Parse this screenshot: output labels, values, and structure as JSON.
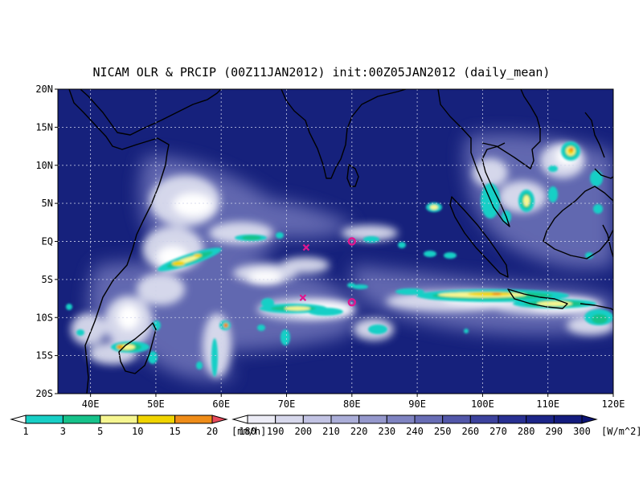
{
  "title": "NICAM OLR & PRCIP (00Z11JAN2012) init:00Z05JAN2012 (daily_mean)",
  "map": {
    "lat_ticks": [
      "20N",
      "15N",
      "10N",
      "5N",
      "EQ",
      "5S",
      "10S",
      "15S",
      "20S"
    ],
    "lon_ticks": [
      "40E",
      "50E",
      "60E",
      "70E",
      "80E",
      "90E",
      "100E",
      "110E",
      "120E"
    ],
    "lon_range": [
      35,
      120
    ],
    "lat_range": [
      -20,
      20
    ],
    "grid": true,
    "background_color": "#16217c",
    "coast_color": "#000000",
    "markers": [
      {
        "symbol": "x",
        "lon": 73,
        "lat": -0.8,
        "color": "#e0168f"
      },
      {
        "symbol": "x",
        "lon": 72.5,
        "lat": -7.4,
        "color": "#e0168f"
      },
      {
        "symbol": "o",
        "lon": 80,
        "lat": 0,
        "color": "#e0168f"
      },
      {
        "symbol": "o",
        "lon": 80,
        "lat": -8,
        "color": "#e0168f"
      }
    ]
  },
  "precip_legend": {
    "labels": [
      "1",
      "3",
      "5",
      "10",
      "15",
      "20"
    ],
    "unit": "[mm/h]",
    "colors": [
      "#ffffff",
      "#18cfc6",
      "#16c28a",
      "#f6f691",
      "#f0d400",
      "#ef8c18",
      "#e64a5c"
    ]
  },
  "olr_legend": {
    "labels": [
      "180",
      "190",
      "200",
      "210",
      "220",
      "230",
      "240",
      "250",
      "260",
      "270",
      "280",
      "290",
      "300"
    ],
    "unit": "[W/m^2]",
    "colors": [
      "#ffffff",
      "#ececf6",
      "#d7d8ec",
      "#c2c3e3",
      "#abaed8",
      "#9598cc",
      "#7f83c1",
      "#686db5",
      "#5257a9",
      "#3c429d",
      "#283092",
      "#1c2588",
      "#141c7e",
      "#0c1474"
    ]
  }
}
